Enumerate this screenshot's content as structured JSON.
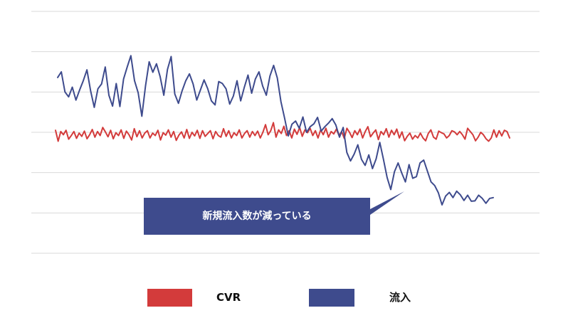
{
  "chart_data": {
    "type": "line",
    "title": "",
    "xlabel": "",
    "ylabel": "",
    "grid": true,
    "ylim": [
      0,
      6
    ],
    "legend_position": "bottom",
    "annotation": "新規流入数が減っている",
    "series": [
      {
        "name": "CVR",
        "color": "#d33b3b",
        "values": [
          3.05,
          2.78,
          3.02,
          2.94,
          3.05,
          2.83,
          2.92,
          3.02,
          2.85,
          2.98,
          2.9,
          3.03,
          2.84,
          2.94,
          3.07,
          2.88,
          3.02,
          2.92,
          3.12,
          3.01,
          2.89,
          3.05,
          2.84,
          2.99,
          2.92,
          3.06,
          2.85,
          3.03,
          2.94,
          2.81,
          3.09,
          2.89,
          3.04,
          2.86,
          2.98,
          3.04,
          2.86,
          2.98,
          2.92,
          3.05,
          2.81,
          2.99,
          2.93,
          3.06,
          2.88,
          3.02,
          2.8,
          2.93,
          3.01,
          2.86,
          3.07,
          2.85,
          3.0,
          2.91,
          3.05,
          2.85,
          3.04,
          2.9,
          2.97,
          3.04,
          2.84,
          3.02,
          2.92,
          2.88,
          3.09,
          2.9,
          3.04,
          2.86,
          2.99,
          2.92,
          3.06,
          2.86,
          2.97,
          3.04,
          2.88,
          3.02,
          2.92,
          3.03,
          2.86,
          3.0,
          3.19,
          2.94,
          3.04,
          3.24,
          2.88,
          3.06,
          2.97,
          3.15,
          2.92,
          3.04,
          2.86,
          3.08,
          2.95,
          3.12,
          2.9,
          3.06,
          2.99,
          3.1,
          2.92,
          3.04,
          2.86,
          3.06,
          2.94,
          3.1,
          2.88,
          3.02,
          2.96,
          3.08,
          2.92,
          3.02,
          2.85,
          3.1,
          3.0,
          2.87,
          3.04,
          2.94,
          3.08,
          2.86,
          3.02,
          3.14,
          2.89,
          2.98,
          3.06,
          2.82,
          3.02,
          2.94,
          3.09,
          2.88,
          3.05,
          2.94,
          3.08,
          2.86,
          3.01,
          2.79,
          2.9,
          2.98,
          2.83,
          2.92,
          2.86,
          2.98,
          2.86,
          2.79,
          2.97,
          3.06,
          2.88,
          2.83,
          3.03,
          2.99,
          2.96,
          2.86,
          2.92,
          3.04,
          3.01,
          2.94,
          3.02,
          2.94,
          2.83,
          3.1,
          3.02,
          2.94,
          2.79,
          2.88,
          3.0,
          2.94,
          2.84,
          2.78,
          2.86,
          3.06,
          2.88,
          3.04,
          2.91,
          3.05,
          3.02,
          2.86
        ]
      },
      {
        "name": "流入",
        "color": "#3e4b8d",
        "values": [
          4.36,
          4.5,
          4.0,
          3.88,
          4.12,
          3.8,
          4.05,
          4.28,
          4.55,
          4.03,
          3.62,
          4.08,
          4.2,
          4.62,
          3.92,
          3.65,
          4.21,
          3.64,
          4.32,
          4.62,
          4.9,
          4.28,
          3.98,
          3.4,
          4.15,
          4.75,
          4.49,
          4.7,
          4.38,
          3.92,
          4.56,
          4.88,
          3.95,
          3.72,
          4.03,
          4.28,
          4.45,
          4.2,
          3.8,
          4.05,
          4.3,
          4.08,
          3.78,
          3.68,
          4.26,
          4.21,
          4.08,
          3.7,
          3.9,
          4.28,
          3.78,
          4.12,
          4.42,
          3.97,
          4.32,
          4.5,
          4.15,
          3.92,
          4.4,
          4.66,
          4.35,
          3.76,
          3.35,
          2.91,
          3.2,
          3.28,
          3.1,
          3.38,
          3.0,
          3.14,
          3.21,
          3.37,
          3.03,
          3.14,
          3.23,
          3.34,
          3.18,
          2.88,
          3.12,
          2.5,
          2.29,
          2.46,
          2.69,
          2.33,
          2.18,
          2.44,
          2.1,
          2.34,
          2.75,
          2.33,
          1.88,
          1.58,
          2.02,
          2.24,
          1.99,
          1.77,
          2.2,
          1.86,
          1.9,
          2.24,
          2.31,
          2.04,
          1.77,
          1.68,
          1.5,
          1.2,
          1.42,
          1.51,
          1.38,
          1.54,
          1.45,
          1.31,
          1.44,
          1.29,
          1.3,
          1.44,
          1.36,
          1.24,
          1.36,
          1.38
        ]
      }
    ]
  }
}
